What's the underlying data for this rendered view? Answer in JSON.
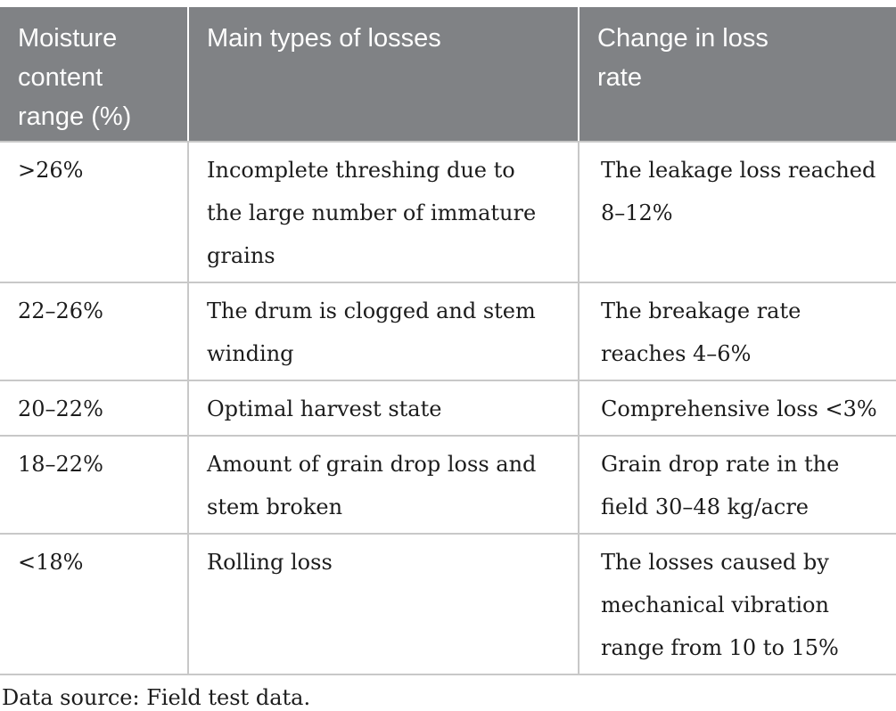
{
  "table": {
    "columns": [
      "Moisture content range (%)",
      "Main types of losses",
      "Change in loss rate"
    ],
    "rows": [
      [
        ">26%",
        "Incomplete threshing due to the large number of immature grains",
        "The leakage loss reached 8–12%"
      ],
      [
        "22–26%",
        "The drum is clogged and stem winding",
        "The breakage rate reaches 4–6%"
      ],
      [
        "20–22%",
        "Optimal harvest state",
        "Comprehensive loss <3%"
      ],
      [
        "18–22%",
        "Amount of grain drop loss and stem broken",
        "Grain drop rate in the field 30–48 kg/acre"
      ],
      [
        "<18%",
        "Rolling loss",
        "The losses caused by mechanical vibration range from 10 to 15%"
      ]
    ],
    "footnote": "Data source: Field test data."
  },
  "colors": {
    "header_bg": "#808285",
    "header_text": "#fdfdfd",
    "body_text": "#1c1c1c",
    "border": "#c8c8c8"
  }
}
